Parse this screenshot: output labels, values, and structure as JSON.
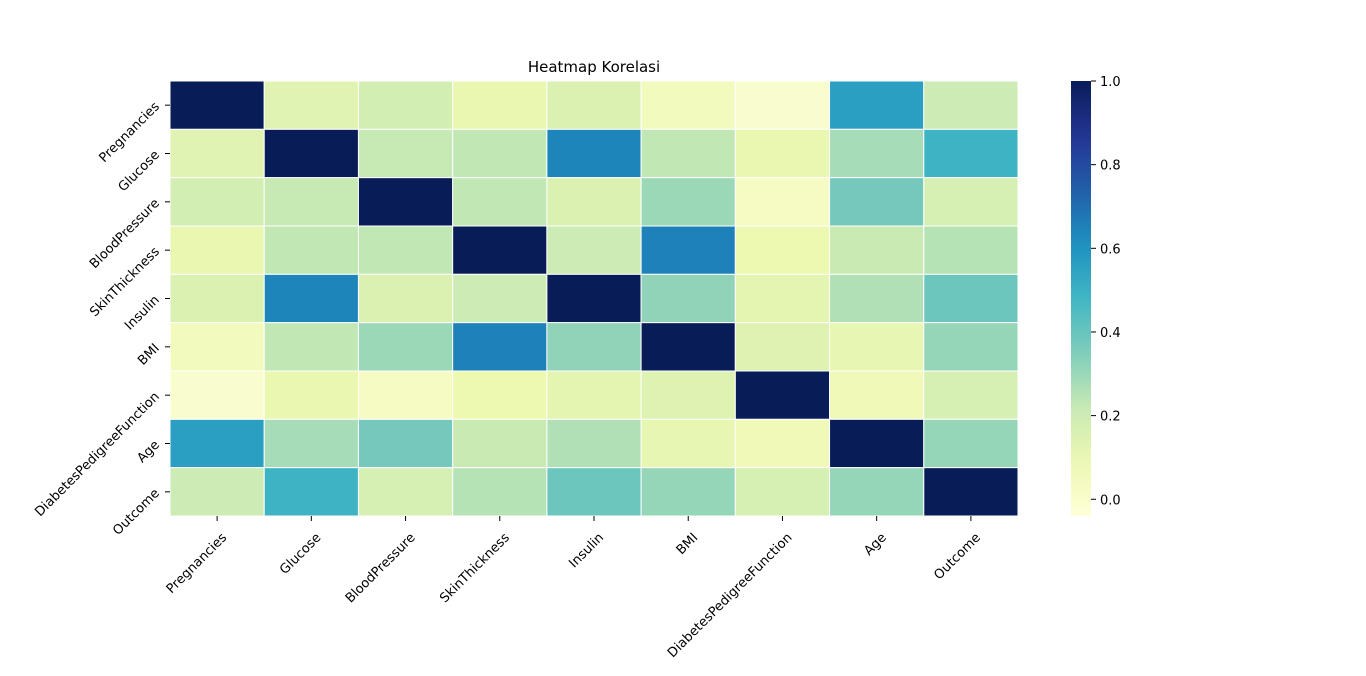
{
  "chart_data": {
    "type": "heatmap",
    "title": "Heatmap Korelasi",
    "xlabel": "",
    "ylabel": "",
    "x_labels": [
      "Pregnancies",
      "Glucose",
      "BloodPressure",
      "SkinThickness",
      "Insulin",
      "BMI",
      "DiabetesPedigreeFunction",
      "Age",
      "Outcome"
    ],
    "y_labels": [
      "Pregnancies",
      "Glucose",
      "BloodPressure",
      "SkinThickness",
      "Insulin",
      "BMI",
      "DiabetesPedigreeFunction",
      "Age",
      "Outcome"
    ],
    "values": [
      [
        1.0,
        0.13,
        0.18,
        0.1,
        0.15,
        0.05,
        0.0,
        0.56,
        0.2
      ],
      [
        0.13,
        1.0,
        0.22,
        0.23,
        0.64,
        0.23,
        0.1,
        0.28,
        0.49
      ],
      [
        0.18,
        0.22,
        1.0,
        0.23,
        0.15,
        0.3,
        0.03,
        0.37,
        0.17
      ],
      [
        0.1,
        0.23,
        0.23,
        1.0,
        0.2,
        0.65,
        0.09,
        0.21,
        0.25
      ],
      [
        0.15,
        0.64,
        0.15,
        0.2,
        1.0,
        0.32,
        0.12,
        0.26,
        0.39
      ],
      [
        0.05,
        0.23,
        0.3,
        0.65,
        0.32,
        1.0,
        0.14,
        0.11,
        0.31
      ],
      [
        0.0,
        0.1,
        0.03,
        0.09,
        0.12,
        0.14,
        1.0,
        0.07,
        0.17
      ],
      [
        0.56,
        0.28,
        0.37,
        0.21,
        0.26,
        0.11,
        0.07,
        1.0,
        0.31
      ],
      [
        0.2,
        0.49,
        0.17,
        0.25,
        0.39,
        0.31,
        0.17,
        0.31,
        1.0
      ]
    ],
    "vmin": -0.04,
    "vmax": 1.0,
    "colormap": "YlGnBu",
    "cell_border_color": "#ffffff",
    "colorbar": {
      "ticks": [
        0.0,
        0.2,
        0.4,
        0.6,
        0.8,
        1.0
      ],
      "tick_labels": [
        "0.0",
        "0.2",
        "0.4",
        "0.6",
        "0.8",
        "1.0"
      ]
    },
    "grid": false,
    "legend": "colorbar-right"
  }
}
